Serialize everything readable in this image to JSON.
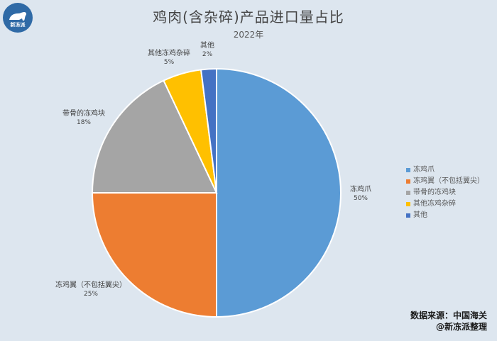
{
  "logo": {
    "text": "新冻派"
  },
  "chart_data": {
    "type": "pie",
    "title": "鸡肉(含杂碎)产品进口量占比",
    "subtitle": "2022年",
    "categories": [
      "冻鸡爪",
      "冻鸡翼（不包括翼尖）",
      "带骨的冻鸡块",
      "其他冻鸡杂碎",
      "其他"
    ],
    "values": [
      50,
      25,
      18,
      5,
      2
    ],
    "value_labels": [
      "50%",
      "25%",
      "18%",
      "5%",
      "2%"
    ],
    "colors": [
      "#5b9bd5",
      "#ed7d31",
      "#a5a5a5",
      "#ffc000",
      "#4472c4"
    ],
    "legend_position": "right",
    "start": "12 o'clock",
    "direction": "clockwise"
  },
  "source": {
    "line1": "数据来源：中国海关",
    "line2": "@新冻派整理"
  }
}
